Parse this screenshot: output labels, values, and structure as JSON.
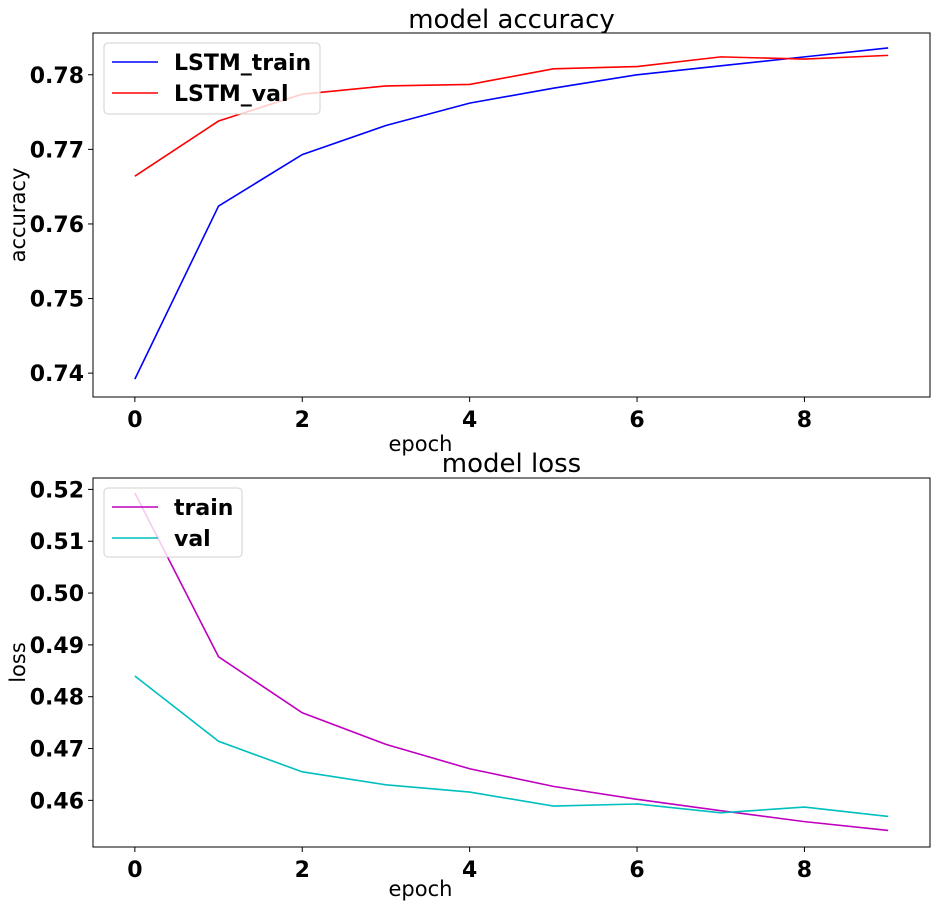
{
  "chart_data": [
    {
      "type": "line",
      "title": "model accuracy",
      "xlabel": "epoch",
      "ylabel": "accuracy",
      "x": [
        0,
        1,
        2,
        3,
        4,
        5,
        6,
        7,
        8,
        9
      ],
      "xlim": [
        -0.5,
        9.5
      ],
      "ylim": [
        0.7368,
        0.7856
      ],
      "xticks": [
        0,
        2,
        4,
        6,
        8
      ],
      "xtick_labels": [
        "0",
        "2",
        "4",
        "6",
        "8"
      ],
      "yticks": [
        0.74,
        0.75,
        0.76,
        0.77,
        0.78
      ],
      "ytick_labels": [
        "0.74",
        "0.75",
        "0.76",
        "0.77",
        "0.78"
      ],
      "legend_position": "upper left",
      "grid": false,
      "series": [
        {
          "name": "LSTM_train",
          "color": "#0000ff",
          "values": [
            0.7392,
            0.7624,
            0.7693,
            0.7732,
            0.7762,
            0.7782,
            0.78,
            0.7812,
            0.7824,
            0.7836
          ]
        },
        {
          "name": "LSTM_val",
          "color": "#ff0000",
          "values": [
            0.7664,
            0.7738,
            0.7774,
            0.7785,
            0.7787,
            0.7808,
            0.7811,
            0.7824,
            0.7821,
            0.7826
          ]
        }
      ]
    },
    {
      "type": "line",
      "title": "model loss",
      "xlabel": "epoch",
      "ylabel": "loss",
      "x": [
        0,
        1,
        2,
        3,
        4,
        5,
        6,
        7,
        8,
        9
      ],
      "xlim": [
        -0.5,
        9.5
      ],
      "ylim": [
        0.451,
        0.5222
      ],
      "xticks": [
        0,
        2,
        4,
        6,
        8
      ],
      "xtick_labels": [
        "0",
        "2",
        "4",
        "6",
        "8"
      ],
      "yticks": [
        0.46,
        0.47,
        0.48,
        0.49,
        0.5,
        0.51,
        0.52
      ],
      "ytick_labels": [
        "0.46",
        "0.47",
        "0.48",
        "0.49",
        "0.50",
        "0.51",
        "0.52"
      ],
      "legend_position": "upper left",
      "grid": false,
      "series": [
        {
          "name": "train",
          "color": "#bf00bf",
          "values": [
            0.5193,
            0.4877,
            0.4769,
            0.4708,
            0.4661,
            0.4627,
            0.4602,
            0.458,
            0.4559,
            0.4542
          ]
        },
        {
          "name": "val",
          "color": "#00bfbf",
          "values": [
            0.484,
            0.4714,
            0.4655,
            0.463,
            0.4616,
            0.4589,
            0.4593,
            0.4576,
            0.4587,
            0.4569
          ]
        }
      ]
    }
  ]
}
